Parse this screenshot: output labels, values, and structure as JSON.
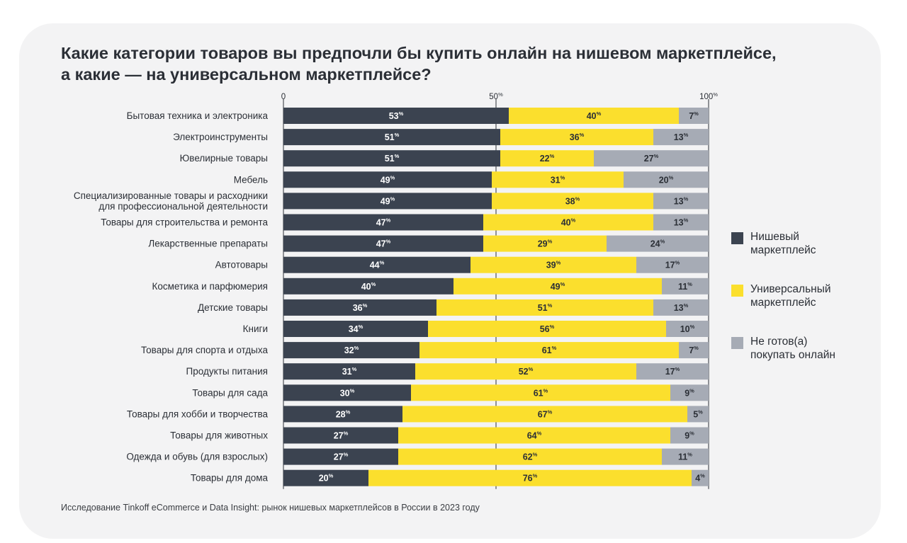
{
  "title_lines": [
    "Какие категории товаров вы предпочли бы купить онлайн на нишевом маркетплейсе,",
    "а какие — на универсальном маркетплейсе?"
  ],
  "source": "Исследование Tinkoff eCommerce и Data Insight: рынок нишевых маркетплейсов в России в 2023 году",
  "legend": [
    {
      "lines": [
        "Нишевый",
        "маркетплейс"
      ],
      "color": "#3b4350"
    },
    {
      "lines": [
        "Универсальный",
        "маркетплейс"
      ],
      "color": "#fbdf2d"
    },
    {
      "lines": [
        "Не готов(а)",
        "покупать онлайн"
      ],
      "color": "#a6abb5"
    }
  ],
  "chart_data": {
    "type": "bar",
    "orientation": "horizontal",
    "stacked": true,
    "xlim": [
      0,
      100
    ],
    "ticks": [
      {
        "value": 0,
        "label": "0",
        "suffix": ""
      },
      {
        "value": 50,
        "label": "50",
        "suffix": "%"
      },
      {
        "value": 100,
        "label": "100",
        "suffix": "%"
      }
    ],
    "value_suffix": "%",
    "categories": [
      [
        "Бытовая техника и электроника"
      ],
      [
        "Электроинструменты"
      ],
      [
        "Ювелирные товары"
      ],
      [
        "Мебель"
      ],
      [
        "Специализированные товары и расходники",
        "для профессиональной деятельности"
      ],
      [
        "Товары для строительства и ремонта"
      ],
      [
        "Лекарственные препараты"
      ],
      [
        "Автотовары"
      ],
      [
        "Косметика и парфюмерия"
      ],
      [
        "Детские товары"
      ],
      [
        "Книги"
      ],
      [
        "Товары для спорта и отдыха"
      ],
      [
        "Продукты питания"
      ],
      [
        "Товары для сада"
      ],
      [
        "Товары для хобби и творчества"
      ],
      [
        "Товары для животных"
      ],
      [
        "Одежда и обувь (для взрослых)"
      ],
      [
        "Товары для дома"
      ]
    ],
    "series": [
      {
        "name": "Нишевый маркетплейс",
        "color": "#3b4350",
        "label_color": "#ffffff",
        "values": [
          53,
          51,
          51,
          49,
          49,
          47,
          47,
          44,
          40,
          36,
          34,
          32,
          31,
          30,
          28,
          27,
          27,
          20
        ]
      },
      {
        "name": "Универсальный маркетплейс",
        "color": "#fbdf2d",
        "label_color": "#2b2f36",
        "values": [
          40,
          36,
          22,
          31,
          38,
          40,
          29,
          39,
          49,
          51,
          56,
          61,
          52,
          61,
          67,
          64,
          62,
          76
        ]
      },
      {
        "name": "Не готов(а) покупать онлайн",
        "color": "#a6abb5",
        "label_color": "#2b2f36",
        "values": [
          7,
          13,
          27,
          20,
          13,
          13,
          24,
          17,
          11,
          13,
          10,
          7,
          17,
          9,
          5,
          9,
          11,
          4
        ]
      }
    ]
  }
}
